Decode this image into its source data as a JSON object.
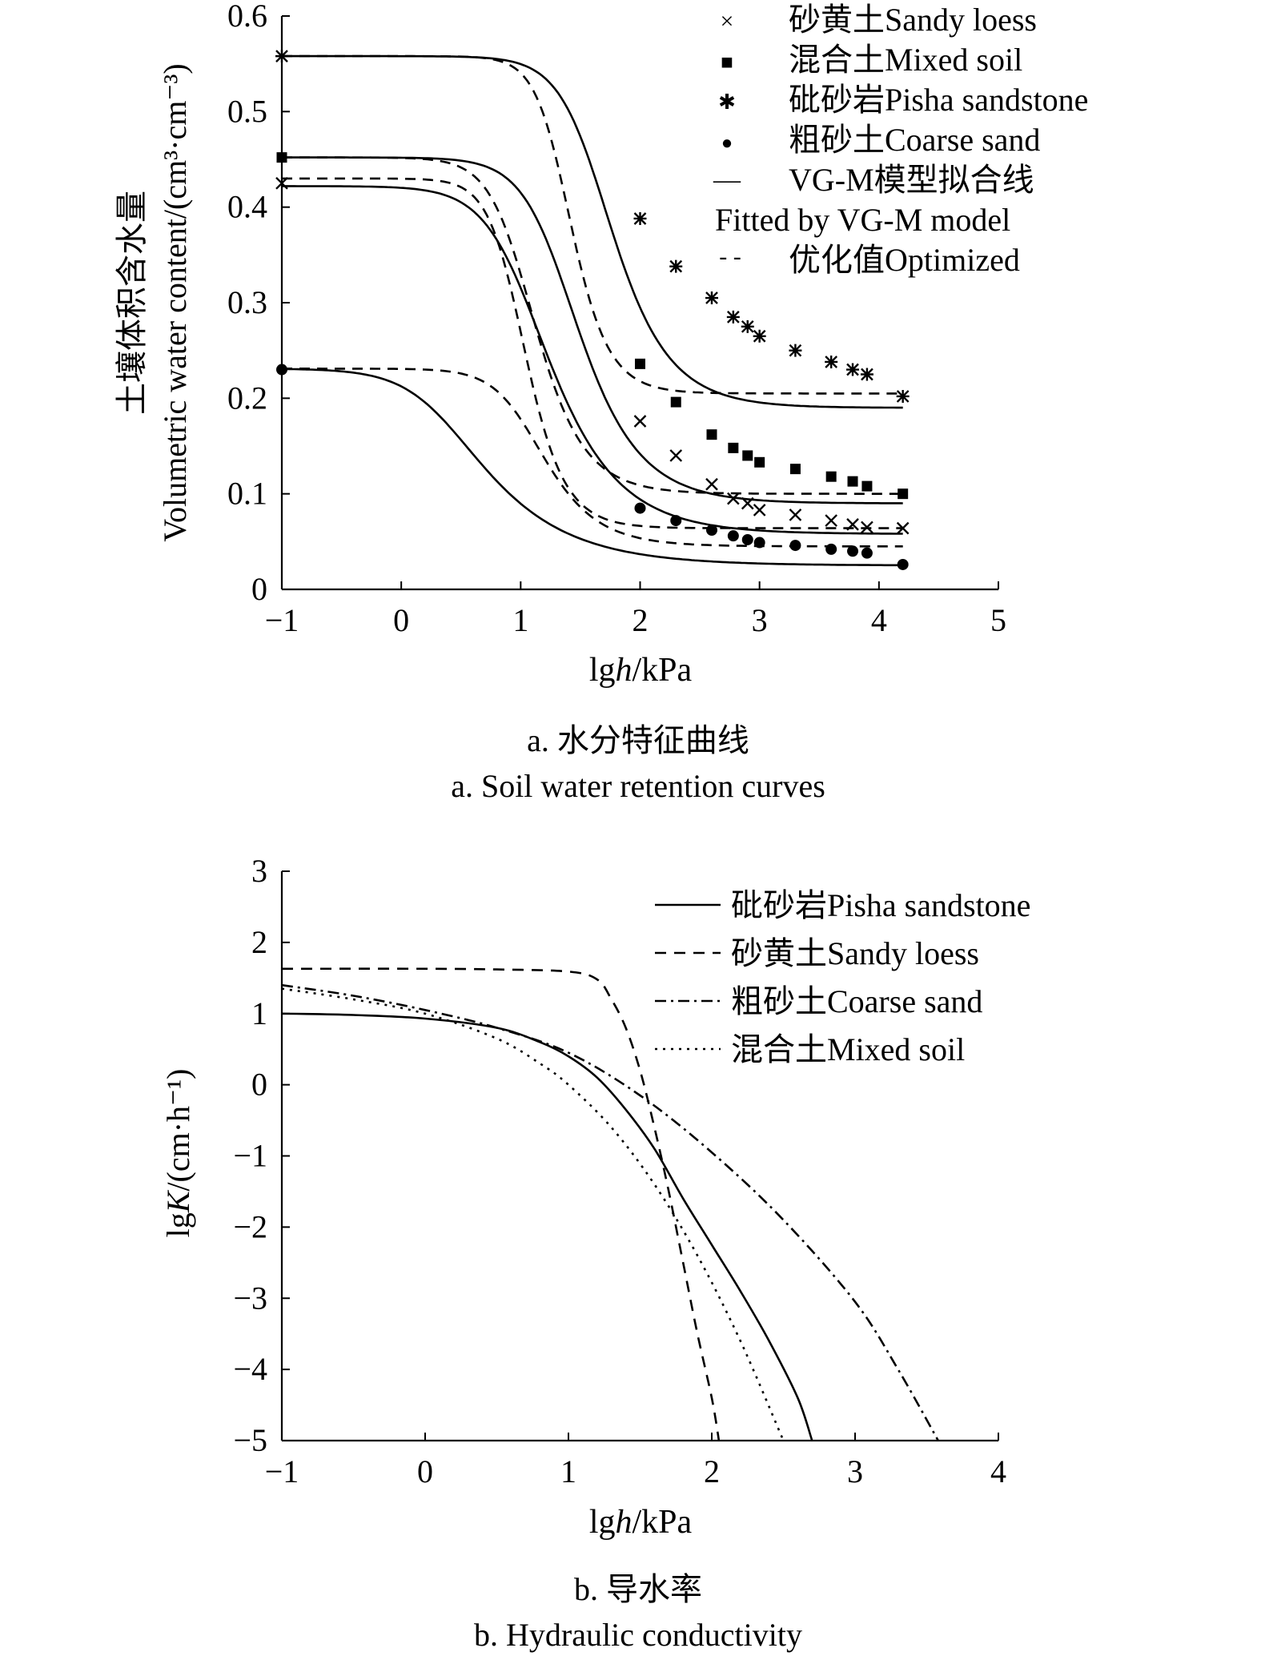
{
  "chart_data": [
    {
      "type": "line",
      "caption_cn": "a. 水分特征曲线",
      "caption_en": "a. Soil water retention curves",
      "xlabel_pre": "lg",
      "xlabel_italic": "h",
      "xlabel_post": "/kPa",
      "ylabel_cn": "土壤体积含水量",
      "ylabel_en": "Volumetric water content/(cm³·cm⁻³)",
      "xlim": [
        -1,
        5
      ],
      "ylim": [
        0,
        0.6
      ],
      "xticks": [
        "−1",
        "0",
        "1",
        "2",
        "3",
        "4",
        "5"
      ],
      "yticks": [
        "0",
        "0.1",
        "0.2",
        "0.3",
        "0.4",
        "0.5",
        "0.6"
      ],
      "legend_position": "top-right",
      "legend": [
        {
          "marker": "×",
          "label": "砂黄土Sandy loess"
        },
        {
          "marker": "■",
          "label": "混合土Mixed soil"
        },
        {
          "marker": "✱",
          "label": "砒砂岩Pisha sandstone"
        },
        {
          "marker": "●",
          "label": "粗砂土Coarse sand"
        },
        {
          "marker": "—",
          "label": "VG-M模型拟合线"
        },
        {
          "marker": "",
          "label": "Fitted by VG-M model"
        },
        {
          "marker": "- -",
          "label": "优化值Optimized"
        }
      ],
      "series": [
        {
          "marker": "star",
          "points": [
            [
              -1,
              0.558
            ],
            [
              2,
              0.388
            ],
            [
              2.3,
              0.338
            ],
            [
              2.6,
              0.305
            ],
            [
              2.78,
              0.285
            ],
            [
              2.9,
              0.275
            ],
            [
              3,
              0.265
            ],
            [
              3.3,
              0.25
            ],
            [
              3.6,
              0.238
            ],
            [
              3.78,
              0.23
            ],
            [
              3.9,
              0.225
            ],
            [
              4.2,
              0.202
            ]
          ],
          "fit": {
            "ts": 0.558,
            "tr": 0.19,
            "a": 0.025,
            "n": 2.3
          },
          "opt": {
            "ts": 0.558,
            "tr": 0.205,
            "a": 0.045,
            "n": 3.2
          }
        },
        {
          "marker": "square",
          "points": [
            [
              -1,
              0.452
            ],
            [
              2,
              0.236
            ],
            [
              2.3,
              0.196
            ],
            [
              2.6,
              0.162
            ],
            [
              2.78,
              0.148
            ],
            [
              2.9,
              0.14
            ],
            [
              3,
              0.133
            ],
            [
              3.3,
              0.126
            ],
            [
              3.6,
              0.118
            ],
            [
              3.78,
              0.113
            ],
            [
              3.9,
              0.108
            ],
            [
              4.2,
              0.1
            ]
          ],
          "fit": {
            "ts": 0.452,
            "tr": 0.09,
            "a": 0.05,
            "n": 2.2
          },
          "opt": {
            "ts": 0.452,
            "tr": 0.1,
            "a": 0.1,
            "n": 2.6
          }
        },
        {
          "marker": "cross",
          "points": [
            [
              -1,
              0.425
            ],
            [
              2,
              0.176
            ],
            [
              2.3,
              0.14
            ],
            [
              2.6,
              0.11
            ],
            [
              2.78,
              0.095
            ],
            [
              2.9,
              0.09
            ],
            [
              3,
              0.083
            ],
            [
              3.3,
              0.078
            ],
            [
              3.6,
              0.072
            ],
            [
              3.78,
              0.068
            ],
            [
              3.9,
              0.065
            ],
            [
              4.2,
              0.064
            ]
          ],
          "fit": {
            "ts": 0.422,
            "tr": 0.058,
            "a": 0.1,
            "n": 2.0
          },
          "opt": {
            "ts": 0.43,
            "tr": 0.064,
            "a": 0.11,
            "n": 3.1
          }
        },
        {
          "marker": "circle",
          "points": [
            [
              -1,
              0.23
            ],
            [
              2,
              0.085
            ],
            [
              2.3,
              0.072
            ],
            [
              2.6,
              0.062
            ],
            [
              2.78,
              0.056
            ],
            [
              2.9,
              0.052
            ],
            [
              3,
              0.049
            ],
            [
              3.3,
              0.046
            ],
            [
              3.6,
              0.042
            ],
            [
              3.78,
              0.04
            ],
            [
              3.9,
              0.038
            ],
            [
              4.2,
              0.026
            ]
          ],
          "fit": {
            "ts": 0.231,
            "tr": 0.025,
            "a": 0.45,
            "n": 1.75
          },
          "opt": {
            "ts": 0.231,
            "tr": 0.045,
            "a": 0.09,
            "n": 2.4
          }
        }
      ]
    },
    {
      "type": "line",
      "caption_cn": "b. 导水率",
      "caption_en": "b. Hydraulic conductivity",
      "xlabel_pre": "lg",
      "xlabel_italic": "h",
      "xlabel_post": "/kPa",
      "ylabel_pre": "lg",
      "ylabel_italic": "K",
      "ylabel_post": "/(cm·h⁻¹)",
      "xlim": [
        -1,
        4
      ],
      "ylim": [
        -5,
        3
      ],
      "xticks": [
        "−1",
        "0",
        "1",
        "2",
        "3",
        "4"
      ],
      "yticks": [
        "−5",
        "−4",
        "−3",
        "−2",
        "−1",
        "0",
        "1",
        "2",
        "3"
      ],
      "legend_position": "top-right",
      "series": [
        {
          "name": "砒砂岩Pisha sandstone",
          "dash": "",
          "x": [
            -1,
            -0.5,
            0,
            0.5,
            0.8,
            1,
            1.2,
            1.4,
            1.6,
            1.8,
            2,
            2.2,
            2.4,
            2.6,
            2.7
          ],
          "y": [
            1,
            0.98,
            0.93,
            0.8,
            0.6,
            0.4,
            0.1,
            -0.35,
            -0.9,
            -1.6,
            -2.25,
            -2.9,
            -3.6,
            -4.4,
            -5
          ]
        },
        {
          "name": "砂黄土Sandy loess",
          "dash": "14 10",
          "x": [
            -1,
            0,
            0.5,
            1,
            1.2,
            1.3,
            1.4,
            1.5,
            1.6,
            1.7,
            1.8,
            1.9,
            2,
            2.05
          ],
          "y": [
            1.63,
            1.63,
            1.62,
            1.59,
            1.48,
            1.2,
            0.8,
            0.2,
            -0.6,
            -1.5,
            -2.5,
            -3.5,
            -4.4,
            -5
          ]
        },
        {
          "name": "粗砂土Coarse sand",
          "dash": "14 6 3 6",
          "x": [
            -1,
            -0.5,
            0,
            0.5,
            1,
            1.5,
            2,
            2.5,
            3,
            3.3,
            3.58
          ],
          "y": [
            1.4,
            1.25,
            1.05,
            0.8,
            0.45,
            -0.15,
            -0.95,
            -1.9,
            -3.05,
            -4,
            -5
          ]
        },
        {
          "name": "混合土Mixed soil",
          "dash": "3 7",
          "x": [
            -1,
            -0.5,
            0,
            0.5,
            0.8,
            1,
            1.3,
            1.6,
            1.9,
            2.2,
            2.5
          ],
          "y": [
            1.35,
            1.2,
            1.0,
            0.65,
            0.3,
            0,
            -0.6,
            -1.4,
            -2.4,
            -3.6,
            -5
          ]
        }
      ]
    }
  ]
}
